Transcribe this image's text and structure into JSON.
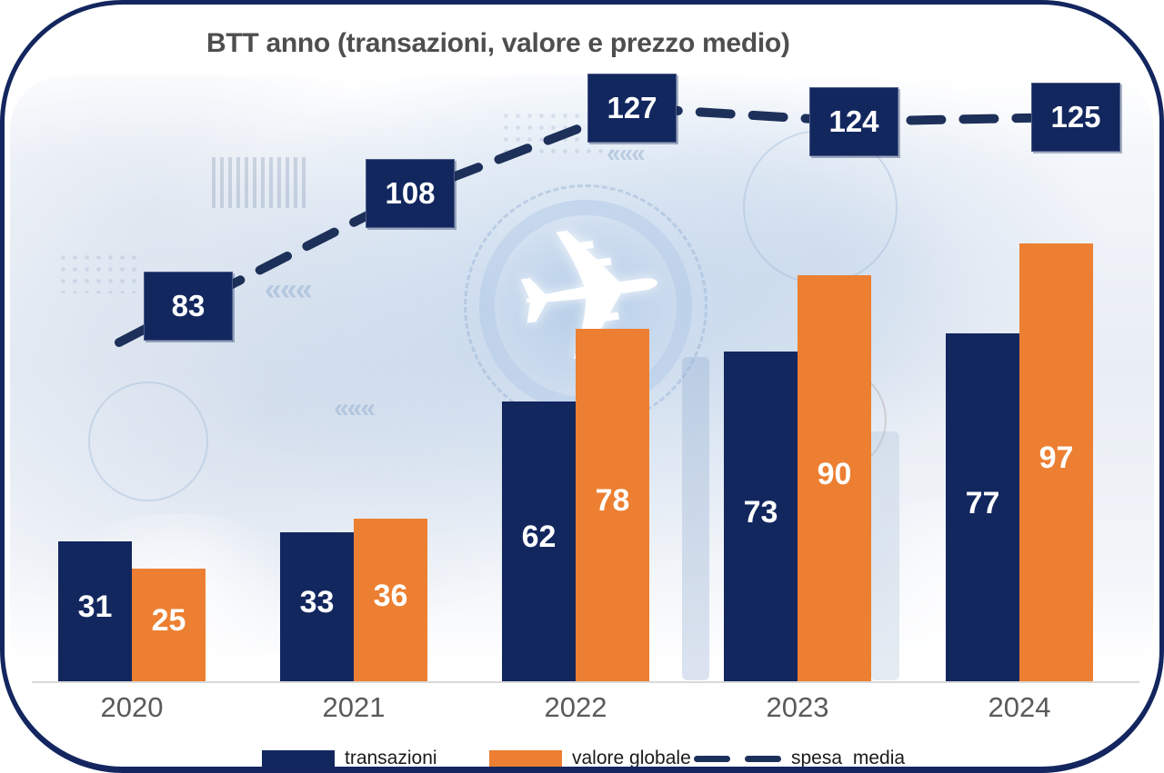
{
  "title": {
    "text": "BTT anno (transazioni, valore e prezzo medio)"
  },
  "chart_data": {
    "type": "bar",
    "subtype": "grouped-bars-with-dashed-line",
    "title": "BTT anno (transazioni, valore e prezzo medio)",
    "categories": [
      "2020",
      "2021",
      "2022",
      "2023",
      "2024"
    ],
    "series": [
      {
        "name": "transazioni",
        "type": "bar",
        "color": "#13275f",
        "values": [
          31,
          33,
          62,
          73,
          77
        ]
      },
      {
        "name": "valore globale",
        "type": "bar",
        "color": "#ec7f31",
        "values": [
          25,
          36,
          78,
          90,
          97
        ]
      },
      {
        "name": "spesa media",
        "type": "line",
        "style": "dashed",
        "color": "#1d3059",
        "values": [
          83,
          108,
          127,
          124,
          125
        ],
        "label_style": "navy-box-white-text"
      }
    ],
    "xlabel": "",
    "ylabel": "",
    "ylim": [
      0,
      140
    ],
    "grid": false,
    "value_labels": "inside-bars-white-bold",
    "legend_position": "bottom",
    "background": "digital travel-tech collage with white airplane in circular ring"
  },
  "legend": {
    "items": [
      {
        "label": "transazioni",
        "swatch": "rect",
        "color": "#13275f"
      },
      {
        "label": "valore globale",
        "swatch": "rect",
        "color": "#ec7f31"
      },
      {
        "label": "spesa media",
        "swatch": "dashes",
        "color": "#1d3059"
      }
    ]
  },
  "colors": {
    "border": "#14265f",
    "bar_navy": "#13275f",
    "bar_orange": "#ec7f31",
    "line_navy": "#1d3059",
    "title_gray": "#4e4e4e",
    "axis_gray": "#d9d9d9",
    "year_label_gray": "#5a5a5a"
  },
  "icons": {
    "airplane": "✈"
  }
}
